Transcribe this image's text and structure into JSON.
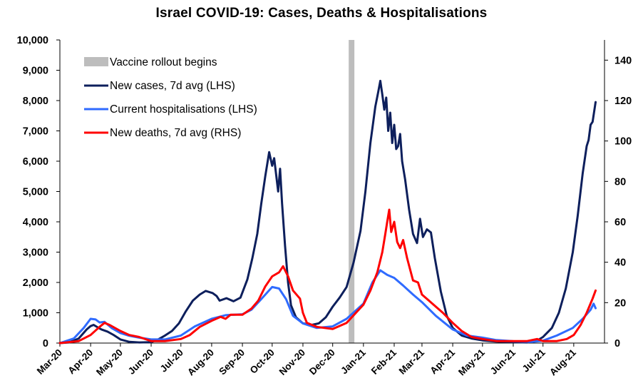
{
  "chart_data": {
    "type": "line",
    "title": "Israel COVID-19: Cases, Deaths & Hospitalisations",
    "x_axis": {
      "type": "date",
      "range": [
        "2020-03-01",
        "2021-09-01"
      ],
      "tick_labels": [
        "Mar-20",
        "Apr-20",
        "May-20",
        "Jun-20",
        "Jul-20",
        "Aug-20",
        "Sep-20",
        "Oct-20",
        "Nov-20",
        "Dec-20",
        "Jan-21",
        "Feb-21",
        "Mar-21",
        "Apr-21",
        "May-21",
        "Jun-21",
        "Jul-21",
        "Aug-21"
      ],
      "tick_dates": [
        "2020-03-01",
        "2020-04-01",
        "2020-05-01",
        "2020-06-01",
        "2020-07-01",
        "2020-08-01",
        "2020-09-01",
        "2020-10-01",
        "2020-11-01",
        "2020-12-01",
        "2021-01-01",
        "2021-02-01",
        "2021-03-01",
        "2021-04-01",
        "2021-05-01",
        "2021-06-01",
        "2021-07-01",
        "2021-08-01"
      ]
    },
    "y_left": {
      "range": [
        0,
        10000
      ],
      "tick_labels": [
        "0",
        "1,000",
        "2,000",
        "3,000",
        "4,000",
        "5,000",
        "6,000",
        "7,000",
        "8,000",
        "9,000",
        "10,000"
      ],
      "tick_values": [
        0,
        1000,
        2000,
        3000,
        4000,
        5000,
        6000,
        7000,
        8000,
        9000,
        10000
      ]
    },
    "y_right": {
      "range": [
        0,
        150
      ],
      "tick_labels": [
        "0",
        "20",
        "40",
        "60",
        "80",
        "100",
        "120",
        "140"
      ],
      "tick_values": [
        0,
        20,
        40,
        60,
        80,
        100,
        120,
        140
      ]
    },
    "grid": false,
    "legend_position": "top-left",
    "vaccine_rollout": {
      "label": "Vaccine rollout begins",
      "date": "2020-12-20",
      "color": "#bdbdbd"
    },
    "series": [
      {
        "name": "New cases, 7d avg (LHS)",
        "axis": "left",
        "color": "#0d1f5c",
        "points": [
          [
            "2020-03-01",
            0
          ],
          [
            "2020-03-10",
            20
          ],
          [
            "2020-03-20",
            150
          ],
          [
            "2020-03-28",
            450
          ],
          [
            "2020-04-01",
            560
          ],
          [
            "2020-04-04",
            600
          ],
          [
            "2020-04-08",
            520
          ],
          [
            "2020-04-12",
            450
          ],
          [
            "2020-04-18",
            380
          ],
          [
            "2020-04-24",
            270
          ],
          [
            "2020-05-01",
            120
          ],
          [
            "2020-05-10",
            40
          ],
          [
            "2020-05-20",
            20
          ],
          [
            "2020-06-01",
            30
          ],
          [
            "2020-06-08",
            120
          ],
          [
            "2020-06-15",
            250
          ],
          [
            "2020-06-22",
            400
          ],
          [
            "2020-06-29",
            650
          ],
          [
            "2020-07-06",
            1050
          ],
          [
            "2020-07-13",
            1400
          ],
          [
            "2020-07-20",
            1600
          ],
          [
            "2020-07-26",
            1720
          ],
          [
            "2020-08-02",
            1650
          ],
          [
            "2020-08-06",
            1550
          ],
          [
            "2020-08-09",
            1400
          ],
          [
            "2020-08-16",
            1480
          ],
          [
            "2020-08-23",
            1380
          ],
          [
            "2020-08-30",
            1500
          ],
          [
            "2020-09-06",
            2100
          ],
          [
            "2020-09-11",
            2800
          ],
          [
            "2020-09-16",
            3600
          ],
          [
            "2020-09-20",
            4600
          ],
          [
            "2020-09-24",
            5500
          ],
          [
            "2020-09-28",
            6300
          ],
          [
            "2020-10-01",
            5850
          ],
          [
            "2020-10-03",
            6100
          ],
          [
            "2020-10-05",
            5550
          ],
          [
            "2020-10-07",
            5000
          ],
          [
            "2020-10-09",
            5750
          ],
          [
            "2020-10-11",
            4600
          ],
          [
            "2020-10-14",
            3200
          ],
          [
            "2020-10-17",
            2000
          ],
          [
            "2020-10-20",
            1250
          ],
          [
            "2020-10-25",
            850
          ],
          [
            "2020-11-01",
            650
          ],
          [
            "2020-11-10",
            600
          ],
          [
            "2020-11-17",
            650
          ],
          [
            "2020-11-24",
            850
          ],
          [
            "2020-12-01",
            1200
          ],
          [
            "2020-12-08",
            1500
          ],
          [
            "2020-12-15",
            1850
          ],
          [
            "2020-12-22",
            2650
          ],
          [
            "2020-12-29",
            3700
          ],
          [
            "2021-01-03",
            5000
          ],
          [
            "2021-01-08",
            6600
          ],
          [
            "2021-01-13",
            7800
          ],
          [
            "2021-01-16",
            8300
          ],
          [
            "2021-01-18",
            8650
          ],
          [
            "2021-01-20",
            8200
          ],
          [
            "2021-01-22",
            7700
          ],
          [
            "2021-01-24",
            8100
          ],
          [
            "2021-01-26",
            7000
          ],
          [
            "2021-01-28",
            7600
          ],
          [
            "2021-01-30",
            6600
          ],
          [
            "2021-02-01",
            7200
          ],
          [
            "2021-02-03",
            6400
          ],
          [
            "2021-02-05",
            6500
          ],
          [
            "2021-02-07",
            6900
          ],
          [
            "2021-02-09",
            6000
          ],
          [
            "2021-02-12",
            5400
          ],
          [
            "2021-02-16",
            4400
          ],
          [
            "2021-02-20",
            3600
          ],
          [
            "2021-02-24",
            3300
          ],
          [
            "2021-02-27",
            4100
          ],
          [
            "2021-03-02",
            3500
          ],
          [
            "2021-03-06",
            3750
          ],
          [
            "2021-03-10",
            3650
          ],
          [
            "2021-03-14",
            2800
          ],
          [
            "2021-03-20",
            1700
          ],
          [
            "2021-03-26",
            900
          ],
          [
            "2021-04-01",
            500
          ],
          [
            "2021-04-10",
            250
          ],
          [
            "2021-04-20",
            150
          ],
          [
            "2021-05-01",
            90
          ],
          [
            "2021-05-15",
            50
          ],
          [
            "2021-06-01",
            30
          ],
          [
            "2021-06-15",
            20
          ],
          [
            "2021-06-25",
            80
          ],
          [
            "2021-07-01",
            200
          ],
          [
            "2021-07-10",
            500
          ],
          [
            "2021-07-17",
            1000
          ],
          [
            "2021-07-24",
            1800
          ],
          [
            "2021-07-31",
            3000
          ],
          [
            "2021-08-05",
            4200
          ],
          [
            "2021-08-10",
            5600
          ],
          [
            "2021-08-14",
            6500
          ],
          [
            "2021-08-16",
            6700
          ],
          [
            "2021-08-18",
            7200
          ],
          [
            "2021-08-20",
            7300
          ],
          [
            "2021-08-23",
            7950
          ]
        ]
      },
      {
        "name": "Current hospitalisations (LHS)",
        "axis": "left",
        "color": "#2f6bff",
        "points": [
          [
            "2020-03-01",
            0
          ],
          [
            "2020-03-15",
            150
          ],
          [
            "2020-03-25",
            500
          ],
          [
            "2020-04-01",
            800
          ],
          [
            "2020-04-06",
            780
          ],
          [
            "2020-04-10",
            680
          ],
          [
            "2020-04-15",
            700
          ],
          [
            "2020-04-22",
            500
          ],
          [
            "2020-05-01",
            330
          ],
          [
            "2020-05-10",
            240
          ],
          [
            "2020-05-20",
            180
          ],
          [
            "2020-06-01",
            120
          ],
          [
            "2020-06-15",
            120
          ],
          [
            "2020-07-01",
            250
          ],
          [
            "2020-07-15",
            550
          ],
          [
            "2020-08-01",
            800
          ],
          [
            "2020-08-15",
            920
          ],
          [
            "2020-09-01",
            950
          ],
          [
            "2020-09-10",
            1100
          ],
          [
            "2020-09-20",
            1450
          ],
          [
            "2020-10-01",
            1850
          ],
          [
            "2020-10-08",
            1800
          ],
          [
            "2020-10-15",
            1450
          ],
          [
            "2020-10-22",
            900
          ],
          [
            "2020-11-01",
            650
          ],
          [
            "2020-11-15",
            500
          ],
          [
            "2020-12-01",
            550
          ],
          [
            "2020-12-15",
            800
          ],
          [
            "2021-01-01",
            1300
          ],
          [
            "2021-01-10",
            2000
          ],
          [
            "2021-01-18",
            2400
          ],
          [
            "2021-01-25",
            2250
          ],
          [
            "2021-02-01",
            2150
          ],
          [
            "2021-02-10",
            1900
          ],
          [
            "2021-02-20",
            1600
          ],
          [
            "2021-03-01",
            1350
          ],
          [
            "2021-03-15",
            900
          ],
          [
            "2021-04-01",
            450
          ],
          [
            "2021-04-15",
            250
          ],
          [
            "2021-05-01",
            180
          ],
          [
            "2021-05-15",
            100
          ],
          [
            "2021-06-01",
            60
          ],
          [
            "2021-06-20",
            40
          ],
          [
            "2021-07-01",
            80
          ],
          [
            "2021-07-15",
            250
          ],
          [
            "2021-07-31",
            500
          ],
          [
            "2021-08-10",
            800
          ],
          [
            "2021-08-18",
            1100
          ],
          [
            "2021-08-21",
            1300
          ],
          [
            "2021-08-23",
            1150
          ]
        ]
      },
      {
        "name": "New deaths, 7d avg (RHS)",
        "axis": "right",
        "color": "#ff0000",
        "points": [
          [
            "2020-03-01",
            0
          ],
          [
            "2020-03-20",
            1
          ],
          [
            "2020-04-01",
            4
          ],
          [
            "2020-04-10",
            8
          ],
          [
            "2020-04-15",
            10
          ],
          [
            "2020-04-20",
            9
          ],
          [
            "2020-05-01",
            6
          ],
          [
            "2020-05-10",
            4
          ],
          [
            "2020-05-20",
            3
          ],
          [
            "2020-06-01",
            1
          ],
          [
            "2020-06-15",
            1
          ],
          [
            "2020-07-01",
            2
          ],
          [
            "2020-07-10",
            4
          ],
          [
            "2020-07-20",
            8
          ],
          [
            "2020-08-01",
            11
          ],
          [
            "2020-08-10",
            13
          ],
          [
            "2020-08-15",
            12
          ],
          [
            "2020-08-20",
            14
          ],
          [
            "2020-09-01",
            14
          ],
          [
            "2020-09-10",
            17
          ],
          [
            "2020-09-17",
            21
          ],
          [
            "2020-09-24",
            28
          ],
          [
            "2020-10-01",
            33
          ],
          [
            "2020-10-08",
            35
          ],
          [
            "2020-10-12",
            38
          ],
          [
            "2020-10-17",
            33
          ],
          [
            "2020-10-22",
            26
          ],
          [
            "2020-10-29",
            22
          ],
          [
            "2020-11-01",
            15
          ],
          [
            "2020-11-05",
            10
          ],
          [
            "2020-11-15",
            8
          ],
          [
            "2020-12-01",
            7
          ],
          [
            "2020-12-15",
            10
          ],
          [
            "2021-01-01",
            19
          ],
          [
            "2021-01-08",
            26
          ],
          [
            "2021-01-15",
            35
          ],
          [
            "2021-01-20",
            45
          ],
          [
            "2021-01-23",
            54
          ],
          [
            "2021-01-25",
            60
          ],
          [
            "2021-01-27",
            66
          ],
          [
            "2021-01-29",
            55
          ],
          [
            "2021-02-01",
            60
          ],
          [
            "2021-02-04",
            50
          ],
          [
            "2021-02-07",
            47
          ],
          [
            "2021-02-10",
            51
          ],
          [
            "2021-02-14",
            42
          ],
          [
            "2021-02-20",
            31
          ],
          [
            "2021-02-25",
            30
          ],
          [
            "2021-03-01",
            24
          ],
          [
            "2021-03-08",
            21
          ],
          [
            "2021-03-15",
            18
          ],
          [
            "2021-03-22",
            15
          ],
          [
            "2021-04-01",
            10
          ],
          [
            "2021-04-10",
            6
          ],
          [
            "2021-04-20",
            3
          ],
          [
            "2021-05-01",
            2
          ],
          [
            "2021-05-15",
            1
          ],
          [
            "2021-06-01",
            1
          ],
          [
            "2021-06-15",
            1
          ],
          [
            "2021-06-25",
            2
          ],
          [
            "2021-07-01",
            1
          ],
          [
            "2021-07-15",
            1
          ],
          [
            "2021-07-25",
            2
          ],
          [
            "2021-08-01",
            4
          ],
          [
            "2021-08-08",
            9
          ],
          [
            "2021-08-14",
            15
          ],
          [
            "2021-08-20",
            22
          ],
          [
            "2021-08-23",
            26
          ]
        ]
      }
    ]
  }
}
